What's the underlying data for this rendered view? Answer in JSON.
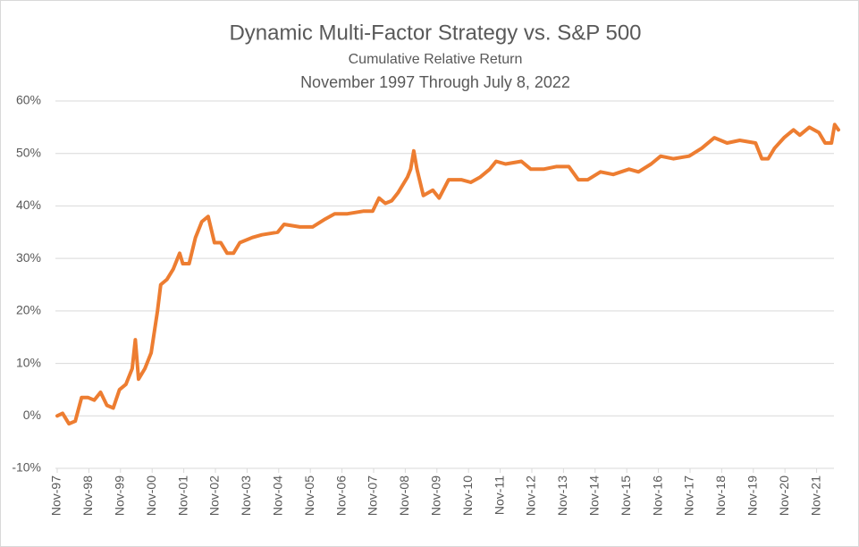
{
  "chart_data": {
    "type": "line",
    "title": "Dynamic Multi-Factor Strategy vs. S&P 500",
    "subtitle": [
      "Cumulative Relative Return",
      "November 1997 Through July 8, 2022"
    ],
    "color": "#ed7d31",
    "grid": true,
    "x": [
      1997.83,
      1998.0,
      1998.2,
      1998.4,
      1998.6,
      1998.8,
      1999.0,
      1999.2,
      1999.4,
      1999.6,
      1999.8,
      2000.0,
      2000.2,
      2000.3,
      2000.4,
      2000.6,
      2000.8,
      2001.0,
      2001.1,
      2001.3,
      2001.5,
      2001.7,
      2001.8,
      2002.0,
      2002.2,
      2002.4,
      2002.6,
      2002.8,
      2003.0,
      2003.2,
      2003.4,
      2003.6,
      2004.0,
      2004.3,
      2004.8,
      2005.0,
      2005.5,
      2005.9,
      2006.3,
      2006.6,
      2007.0,
      2007.5,
      2007.8,
      2008.0,
      2008.2,
      2008.4,
      2008.6,
      2008.9,
      2009.0,
      2009.1,
      2009.2,
      2009.4,
      2009.7,
      2009.9,
      2010.2,
      2010.6,
      2010.9,
      2011.2,
      2011.5,
      2011.7,
      2012.0,
      2012.5,
      2012.8,
      2013.2,
      2013.6,
      2014.0,
      2014.3,
      2014.6,
      2015.0,
      2015.4,
      2015.9,
      2016.2,
      2016.6,
      2016.9,
      2017.3,
      2017.8,
      2018.2,
      2018.6,
      2019.0,
      2019.4,
      2019.9,
      2020.1,
      2020.3,
      2020.5,
      2020.8,
      2021.1,
      2021.3,
      2021.6,
      2021.9,
      2022.1,
      2022.3,
      2022.4,
      2022.52
    ],
    "values": [
      0,
      0.5,
      -1.5,
      -1,
      3.5,
      3.5,
      3,
      4.5,
      2,
      1.5,
      5,
      6,
      9,
      14.5,
      7,
      9,
      12,
      20,
      25,
      26,
      28,
      31,
      29,
      29,
      34,
      37,
      38,
      33,
      33,
      31,
      31,
      33,
      34,
      34.5,
      35,
      36.5,
      36,
      36,
      37.5,
      38.5,
      38.5,
      39,
      39,
      41.5,
      40.5,
      41,
      42.5,
      45.5,
      47,
      50.5,
      47,
      42,
      43,
      41.5,
      45,
      45,
      44.5,
      45.5,
      47,
      48.5,
      48,
      48.5,
      47,
      47,
      47.5,
      47.5,
      45,
      45,
      46.5,
      46,
      47,
      46.5,
      48,
      49.5,
      49,
      49.5,
      51,
      53,
      52,
      52.5,
      52,
      49,
      49,
      51,
      53,
      54.5,
      53.5,
      55,
      54,
      52,
      52,
      55.5,
      54.5
    ],
    "xlim": [
      1997.83,
      2022.52
    ],
    "xticks": [
      {
        "value": 1997.83,
        "label": "Nov-97"
      },
      {
        "value": 1998.83,
        "label": "Nov-98"
      },
      {
        "value": 1999.83,
        "label": "Nov-99"
      },
      {
        "value": 2000.83,
        "label": "Nov-00"
      },
      {
        "value": 2001.83,
        "label": "Nov-01"
      },
      {
        "value": 2002.83,
        "label": "Nov-02"
      },
      {
        "value": 2003.83,
        "label": "Nov-03"
      },
      {
        "value": 2004.83,
        "label": "Nov-04"
      },
      {
        "value": 2005.83,
        "label": "Nov-05"
      },
      {
        "value": 2006.83,
        "label": "Nov-06"
      },
      {
        "value": 2007.83,
        "label": "Nov-07"
      },
      {
        "value": 2008.83,
        "label": "Nov-08"
      },
      {
        "value": 2009.83,
        "label": "Nov-09"
      },
      {
        "value": 2010.83,
        "label": "Nov-10"
      },
      {
        "value": 2011.83,
        "label": "Nov-11"
      },
      {
        "value": 2012.83,
        "label": "Nov-12"
      },
      {
        "value": 2013.83,
        "label": "Nov-13"
      },
      {
        "value": 2014.83,
        "label": "Nov-14"
      },
      {
        "value": 2015.83,
        "label": "Nov-15"
      },
      {
        "value": 2016.83,
        "label": "Nov-16"
      },
      {
        "value": 2017.83,
        "label": "Nov-17"
      },
      {
        "value": 2018.83,
        "label": "Nov-18"
      },
      {
        "value": 2019.83,
        "label": "Nov-19"
      },
      {
        "value": 2020.83,
        "label": "Nov-20"
      },
      {
        "value": 2021.83,
        "label": "Nov-21"
      }
    ],
    "ylim": [
      -10,
      60
    ],
    "yticks": [
      {
        "value": -10,
        "label": "-10%"
      },
      {
        "value": 0,
        "label": "0%"
      },
      {
        "value": 10,
        "label": "10%"
      },
      {
        "value": 20,
        "label": "20%"
      },
      {
        "value": 30,
        "label": "30%"
      },
      {
        "value": 40,
        "label": "40%"
      },
      {
        "value": 50,
        "label": "50%"
      },
      {
        "value": 60,
        "label": "60%"
      }
    ]
  }
}
